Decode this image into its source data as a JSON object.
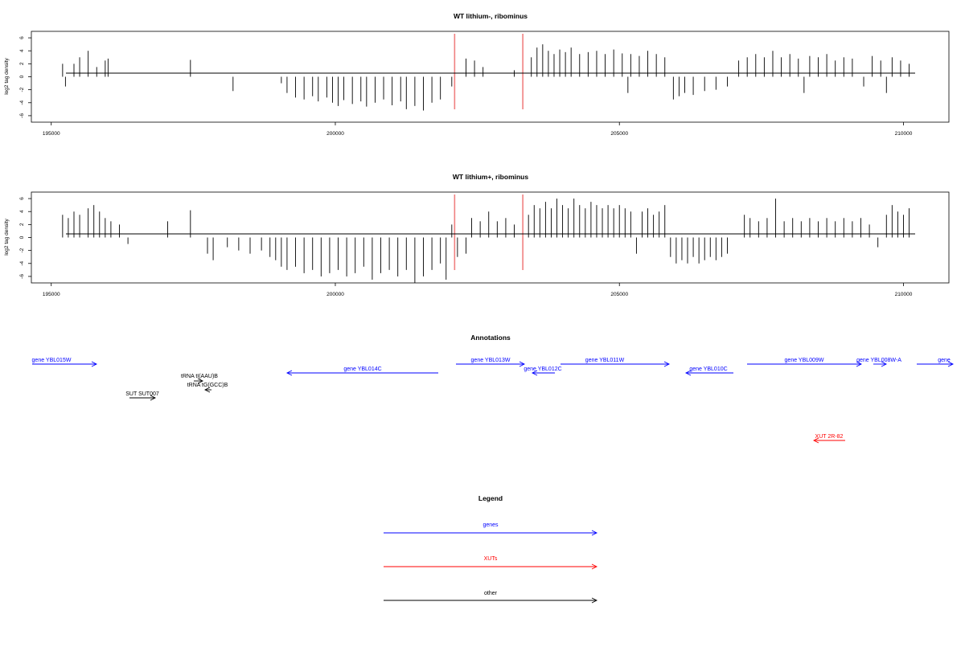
{
  "chart_data": [
    {
      "type": "bar",
      "title": "WT lithium-, ribominus",
      "ylabel": "log2 tag density",
      "xlim": [
        195000,
        210000
      ],
      "ylim": [
        -7,
        7
      ],
      "xticks": [
        195000,
        200000,
        205000,
        210000
      ],
      "yticks": [
        -6,
        -4,
        -2,
        0,
        2,
        4,
        6
      ],
      "markers": [
        202100,
        203300
      ],
      "marker_color": "#f08080",
      "series": [
        {
          "values": [
            [
              195200,
              2
            ],
            [
              195250,
              -1.5
            ],
            [
              195400,
              2
            ],
            [
              195500,
              3
            ],
            [
              195650,
              4
            ],
            [
              195800,
              1.5
            ],
            [
              195950,
              2.5
            ],
            [
              196000,
              2.8
            ],
            [
              197450,
              2.6
            ],
            [
              198200,
              -2.2
            ],
            [
              199050,
              -1
            ],
            [
              199150,
              -2.5
            ],
            [
              199300,
              -3.2
            ],
            [
              199450,
              -3.5
            ],
            [
              199600,
              -3
            ],
            [
              199700,
              -3.8
            ],
            [
              199850,
              -3.2
            ],
            [
              199950,
              -4
            ],
            [
              200050,
              -4.5
            ],
            [
              200150,
              -3.6
            ],
            [
              200300,
              -4.2
            ],
            [
              200450,
              -3.8
            ],
            [
              200550,
              -4.6
            ],
            [
              200700,
              -4
            ],
            [
              200850,
              -3.5
            ],
            [
              201000,
              -4.4
            ],
            [
              201150,
              -3.8
            ],
            [
              201250,
              -5
            ],
            [
              201400,
              -4.5
            ],
            [
              201550,
              -5.2
            ],
            [
              201700,
              -4
            ],
            [
              201850,
              -3.5
            ],
            [
              202050,
              -1.5
            ],
            [
              202300,
              2.8
            ],
            [
              202450,
              2.5
            ],
            [
              202600,
              1.5
            ],
            [
              203150,
              1
            ],
            [
              203450,
              3
            ],
            [
              203550,
              4.5
            ],
            [
              203650,
              5
            ],
            [
              203750,
              4
            ],
            [
              203850,
              3.5
            ],
            [
              203950,
              4.2
            ],
            [
              204050,
              3.8
            ],
            [
              204150,
              4.5
            ],
            [
              204300,
              3.5
            ],
            [
              204450,
              3.8
            ],
            [
              204600,
              4
            ],
            [
              204750,
              3.5
            ],
            [
              204900,
              4.2
            ],
            [
              205050,
              3.6
            ],
            [
              205150,
              -2.5
            ],
            [
              205200,
              3.5
            ],
            [
              205350,
              3.2
            ],
            [
              205500,
              4
            ],
            [
              205650,
              3.5
            ],
            [
              205800,
              3
            ],
            [
              205950,
              -3.5
            ],
            [
              206050,
              -3
            ],
            [
              206150,
              -2.5
            ],
            [
              206300,
              -2.8
            ],
            [
              206500,
              -2.2
            ],
            [
              206700,
              -2
            ],
            [
              206900,
              -1.5
            ],
            [
              207100,
              2.5
            ],
            [
              207250,
              3
            ],
            [
              207400,
              3.5
            ],
            [
              207550,
              3
            ],
            [
              207700,
              4
            ],
            [
              207850,
              3
            ],
            [
              208000,
              3.5
            ],
            [
              208150,
              2.8
            ],
            [
              208250,
              -2.5
            ],
            [
              208350,
              3.2
            ],
            [
              208500,
              3
            ],
            [
              208650,
              3.5
            ],
            [
              208800,
              2.5
            ],
            [
              208950,
              3
            ],
            [
              209100,
              2.8
            ],
            [
              209300,
              -1.5
            ],
            [
              209450,
              3.2
            ],
            [
              209600,
              2.5
            ],
            [
              209700,
              -2.5
            ],
            [
              209800,
              3
            ],
            [
              209950,
              2.5
            ],
            [
              210100,
              2
            ]
          ]
        }
      ]
    },
    {
      "type": "bar",
      "title": "WT lithium+, ribominus",
      "ylabel": "log2 tag density",
      "xlim": [
        195000,
        210000
      ],
      "ylim": [
        -7,
        7
      ],
      "xticks": [
        195000,
        200000,
        205000,
        210000
      ],
      "yticks": [
        -6,
        -4,
        -2,
        0,
        2,
        4,
        6
      ],
      "markers": [
        202100,
        203300
      ],
      "marker_color": "#f08080",
      "series": [
        {
          "values": [
            [
              195200,
              3.5
            ],
            [
              195300,
              3
            ],
            [
              195400,
              4
            ],
            [
              195500,
              3.5
            ],
            [
              195650,
              4.5
            ],
            [
              195750,
              5
            ],
            [
              195850,
              4
            ],
            [
              195950,
              3
            ],
            [
              196050,
              2.5
            ],
            [
              196200,
              2
            ],
            [
              196350,
              -1
            ],
            [
              197050,
              2.5
            ],
            [
              197450,
              4.2
            ],
            [
              197750,
              -2.5
            ],
            [
              197850,
              -3.5
            ],
            [
              198100,
              -1.5
            ],
            [
              198300,
              -2
            ],
            [
              198500,
              -2.5
            ],
            [
              198700,
              -2
            ],
            [
              198850,
              -3
            ],
            [
              198950,
              -3.5
            ],
            [
              199050,
              -4.5
            ],
            [
              199150,
              -5
            ],
            [
              199300,
              -4.5
            ],
            [
              199450,
              -5.5
            ],
            [
              199600,
              -5
            ],
            [
              199750,
              -6
            ],
            [
              199900,
              -5.5
            ],
            [
              200050,
              -5
            ],
            [
              200200,
              -6
            ],
            [
              200350,
              -5.5
            ],
            [
              200500,
              -4.5
            ],
            [
              200650,
              -6.5
            ],
            [
              200800,
              -5.5
            ],
            [
              200950,
              -5
            ],
            [
              201100,
              -6
            ],
            [
              201250,
              -5
            ],
            [
              201400,
              -7
            ],
            [
              201550,
              -6
            ],
            [
              201700,
              -5
            ],
            [
              201850,
              -4
            ],
            [
              201950,
              -6.5
            ],
            [
              202050,
              2
            ],
            [
              202150,
              -3
            ],
            [
              202300,
              -2.5
            ],
            [
              202400,
              3
            ],
            [
              202550,
              2.5
            ],
            [
              202700,
              4
            ],
            [
              202850,
              2.5
            ],
            [
              203000,
              3
            ],
            [
              203150,
              2
            ],
            [
              203400,
              3.5
            ],
            [
              203500,
              5
            ],
            [
              203600,
              4.5
            ],
            [
              203700,
              5.5
            ],
            [
              203800,
              4.5
            ],
            [
              203900,
              6
            ],
            [
              204000,
              5
            ],
            [
              204100,
              4.5
            ],
            [
              204200,
              6
            ],
            [
              204300,
              5
            ],
            [
              204400,
              4.5
            ],
            [
              204500,
              5.5
            ],
            [
              204600,
              5
            ],
            [
              204700,
              4.5
            ],
            [
              204800,
              5
            ],
            [
              204900,
              4.5
            ],
            [
              205000,
              5
            ],
            [
              205100,
              4.5
            ],
            [
              205200,
              4
            ],
            [
              205300,
              -2.5
            ],
            [
              205400,
              4
            ],
            [
              205500,
              4.5
            ],
            [
              205600,
              3.5
            ],
            [
              205700,
              4
            ],
            [
              205800,
              5
            ],
            [
              205900,
              -3
            ],
            [
              206000,
              -4
            ],
            [
              206100,
              -3.5
            ],
            [
              206200,
              -4
            ],
            [
              206300,
              -3
            ],
            [
              206400,
              -4
            ],
            [
              206500,
              -3.5
            ],
            [
              206600,
              -3
            ],
            [
              206700,
              -3.5
            ],
            [
              206800,
              -3
            ],
            [
              206900,
              -2.5
            ],
            [
              207200,
              3.5
            ],
            [
              207300,
              3
            ],
            [
              207450,
              2.5
            ],
            [
              207600,
              3
            ],
            [
              207750,
              6
            ],
            [
              207900,
              2.5
            ],
            [
              208050,
              3
            ],
            [
              208200,
              2.5
            ],
            [
              208350,
              3
            ],
            [
              208500,
              2.5
            ],
            [
              208650,
              3
            ],
            [
              208800,
              2.5
            ],
            [
              208950,
              3
            ],
            [
              209100,
              2.5
            ],
            [
              209250,
              3
            ],
            [
              209400,
              2
            ],
            [
              209550,
              -1.5
            ],
            [
              209700,
              3.5
            ],
            [
              209800,
              5
            ],
            [
              209900,
              4
            ],
            [
              210000,
              3.5
            ],
            [
              210100,
              4.5
            ]
          ]
        }
      ]
    }
  ],
  "annotations": {
    "title": "Annotations",
    "features": [
      {
        "label": "gene YBL015W",
        "category": "gene",
        "dir": "fwd",
        "row": 0
      },
      {
        "label": "gene YBL014C",
        "category": "gene",
        "dir": "rev",
        "row": 1
      },
      {
        "label": "gene YBL013W",
        "category": "gene",
        "dir": "fwd",
        "row": 0
      },
      {
        "label": "gene YBL012C",
        "category": "gene",
        "dir": "rev",
        "row": 1
      },
      {
        "label": "gene YBL011W",
        "category": "gene",
        "dir": "fwd",
        "row": 0
      },
      {
        "label": "gene YBL010C",
        "category": "gene",
        "dir": "rev",
        "row": 1
      },
      {
        "label": "gene YBL009W",
        "category": "gene",
        "dir": "fwd",
        "row": 0
      },
      {
        "label": "gene YBL008W-A",
        "category": "gene",
        "dir": "fwd",
        "row": 0
      },
      {
        "label": "gene",
        "category": "gene",
        "dir": "fwd",
        "row": 0
      },
      {
        "label": "tRNA tI(AAU)B",
        "category": "other",
        "dir": "fwd",
        "row": 2
      },
      {
        "label": "tRNA tG(GCC)B",
        "category": "other",
        "dir": "rev",
        "row": 3
      },
      {
        "label": "SUT SUT007",
        "category": "other",
        "dir": "fwd",
        "row": 4
      },
      {
        "label": "XUT 2R-82",
        "category": "xut",
        "dir": "rev",
        "row": 5
      }
    ]
  },
  "legend": {
    "title": "Legend",
    "items": [
      {
        "label": "genes",
        "color": "#0000ff"
      },
      {
        "label": "XUTs",
        "color": "#ff0000"
      },
      {
        "label": "other",
        "color": "#000000"
      }
    ]
  },
  "colors": {
    "gene": "#0000ff",
    "xut": "#ff0000",
    "other": "#000000",
    "bar": "#000000"
  }
}
